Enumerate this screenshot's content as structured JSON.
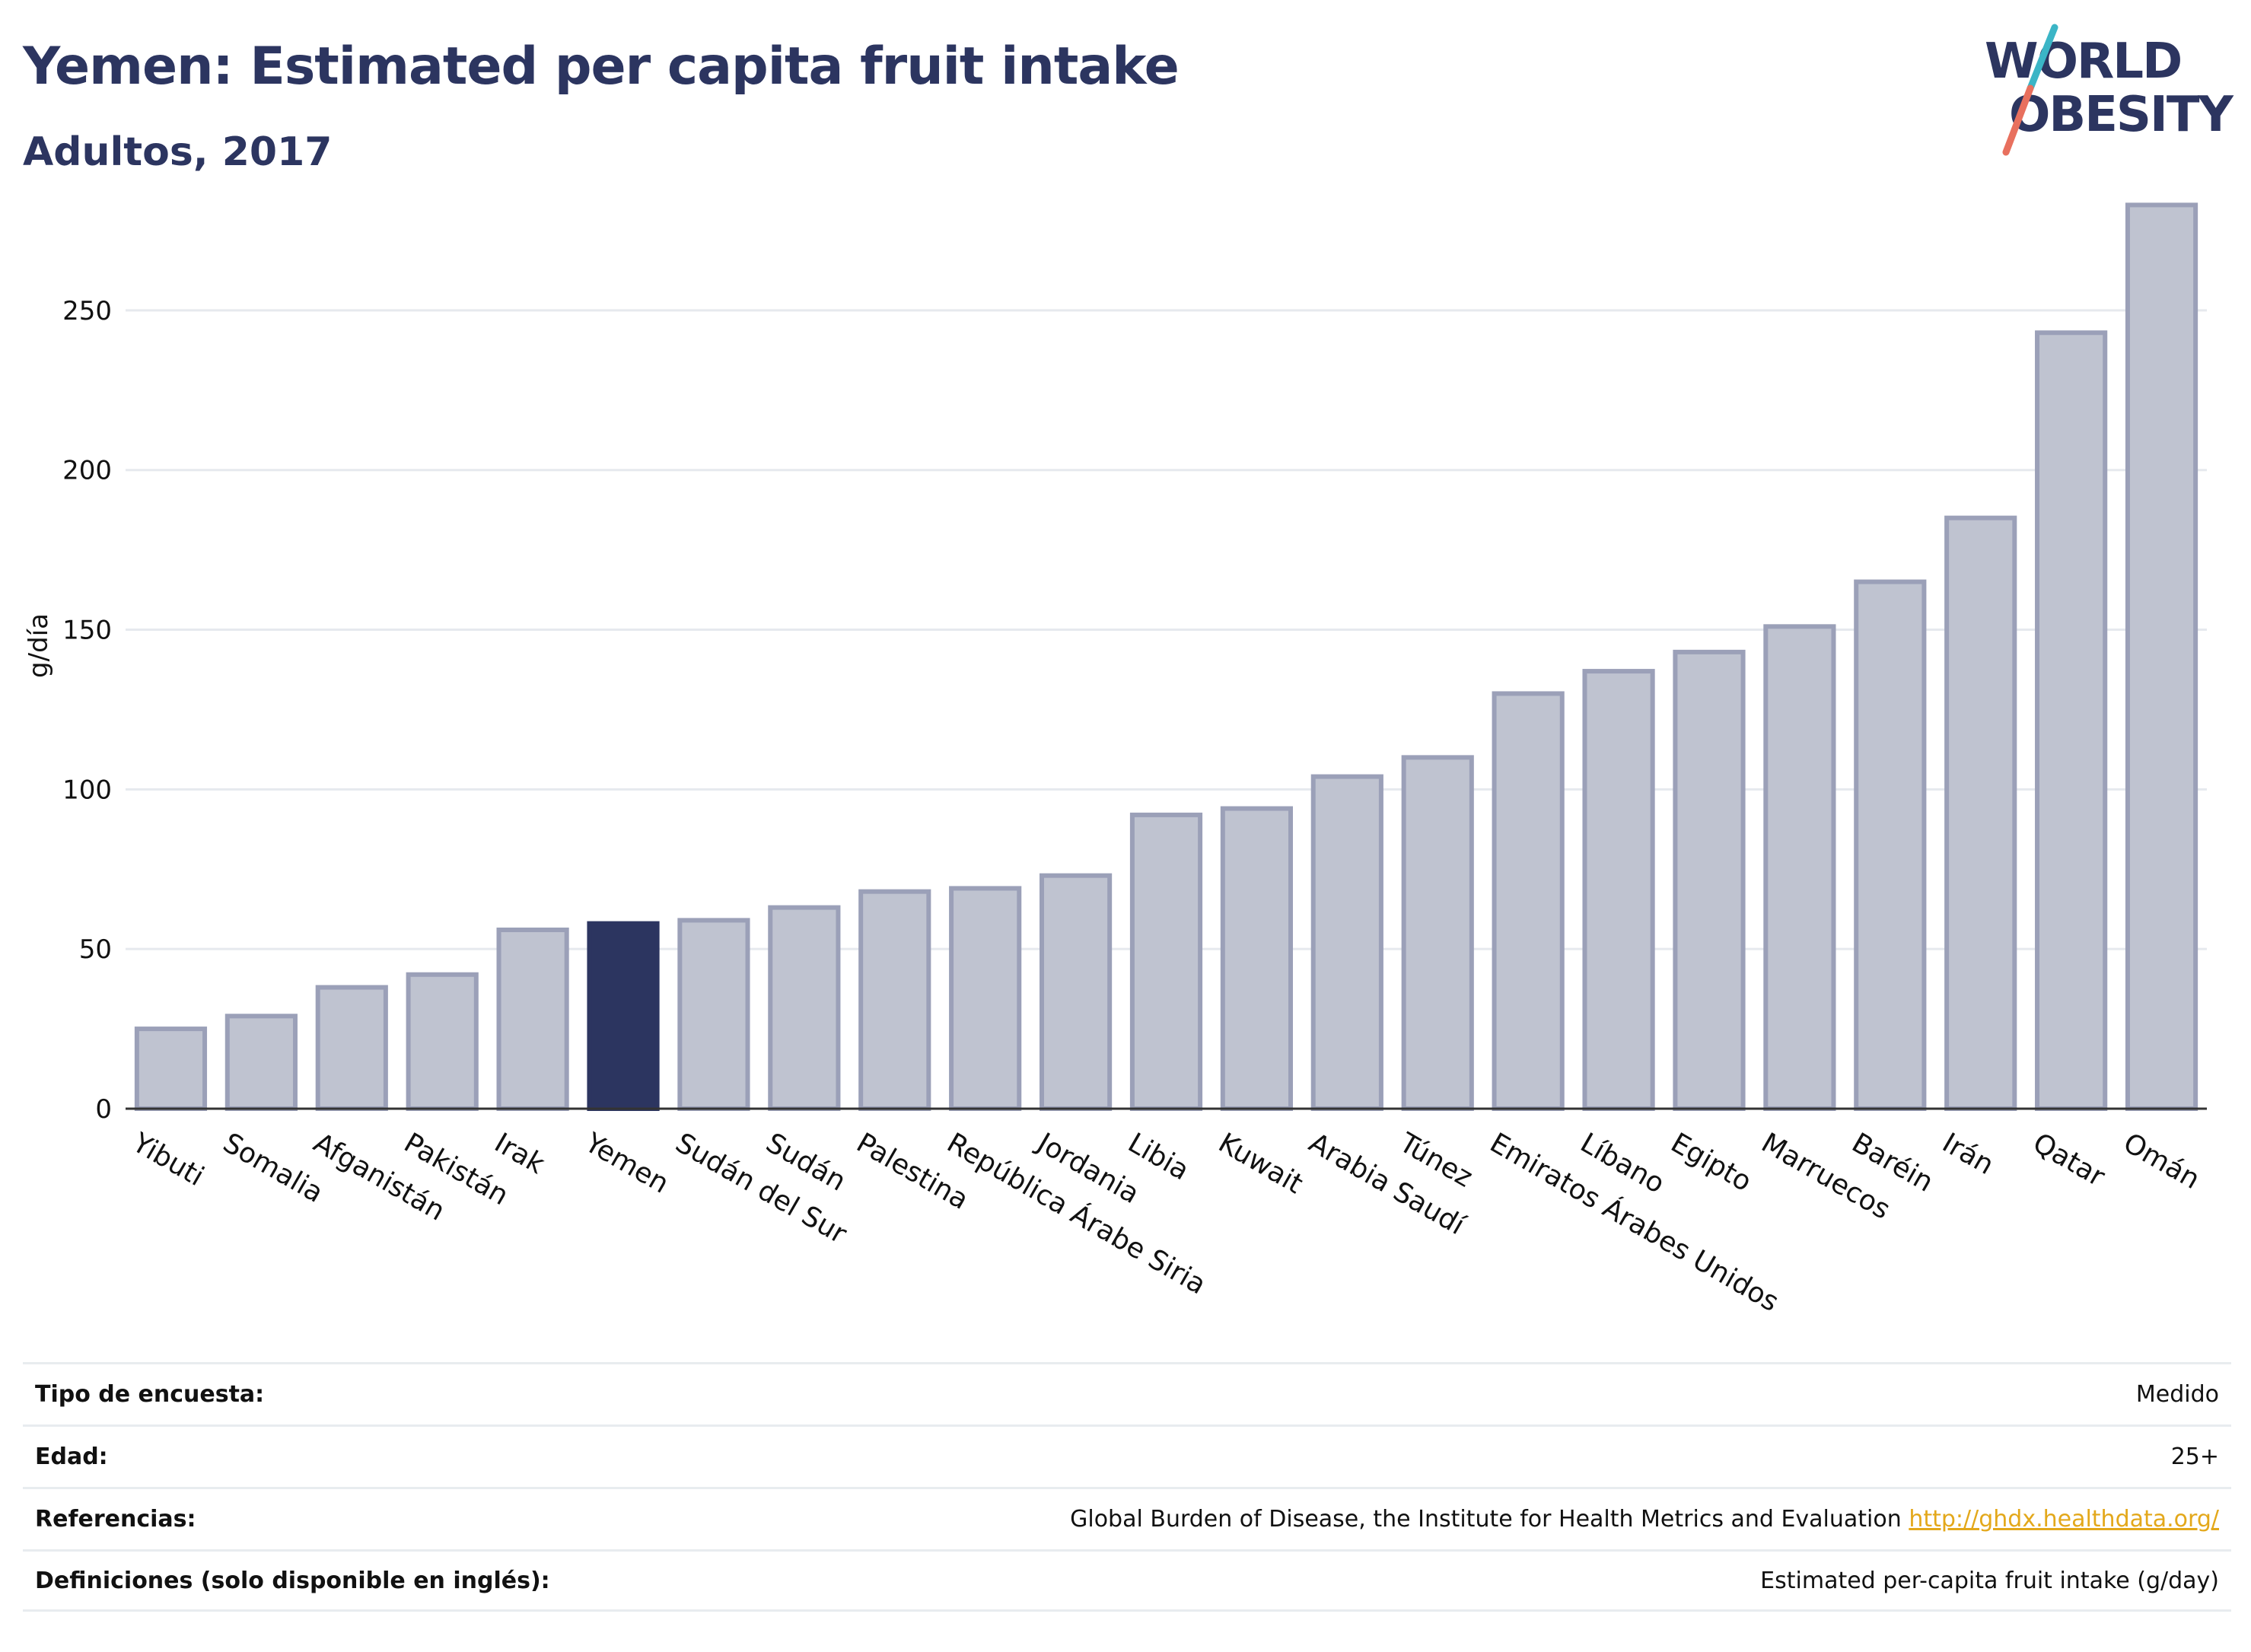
{
  "header": {
    "title": "Yemen: Estimated per capita fruit intake",
    "subtitle": "Adultos, 2017"
  },
  "logo": {
    "line1": "WORLD",
    "line2": "OBESITY"
  },
  "colors": {
    "highlight": "#2c3560",
    "bar": "#bfc3d0",
    "bar_border": "#9ba0b8",
    "grid": "#e6e9ee",
    "logo_text": "#2c3560",
    "logo_slash_top": "#3bb5c6",
    "logo_slash_bottom": "#e8705e"
  },
  "chart_data": {
    "type": "bar",
    "ylabel": "g/día",
    "xlabel": "",
    "ylim": [
      0,
      290
    ],
    "yticks": [
      0,
      50,
      100,
      150,
      200,
      250
    ],
    "grid": true,
    "highlight": "Yemen",
    "categories": [
      "Yibuti",
      "Somalia",
      "Afganistán",
      "Pakistán",
      "Irak",
      "Yemen",
      "Sudán del Sur",
      "Sudán",
      "Palestina",
      "República Árabe Siria",
      "Jordania",
      "Libia",
      "Kuwait",
      "Arabia Saudí",
      "Túnez",
      "Emiratos Árabes Unidos",
      "Líbano",
      "Egipto",
      "Marruecos",
      "Baréin",
      "Irán",
      "Qatar",
      "Omán"
    ],
    "values": [
      25,
      29,
      38,
      42,
      56,
      58,
      59,
      63,
      68,
      69,
      73,
      92,
      94,
      104,
      110,
      130,
      137,
      143,
      151,
      165,
      185,
      243,
      283
    ]
  },
  "info": {
    "survey_label": "Tipo de encuesta:",
    "survey_value": "Medido",
    "age_label": "Edad:",
    "age_value": "25+",
    "refs_label": "Referencias:",
    "refs_value": "Global Burden of Disease, the Institute for Health Metrics and Evaluation",
    "refs_link": "http://ghdx.healthdata.org/",
    "defs_label": "Definiciones (solo disponible en inglés):",
    "defs_value": "Estimated per-capita fruit intake (g/day)"
  }
}
